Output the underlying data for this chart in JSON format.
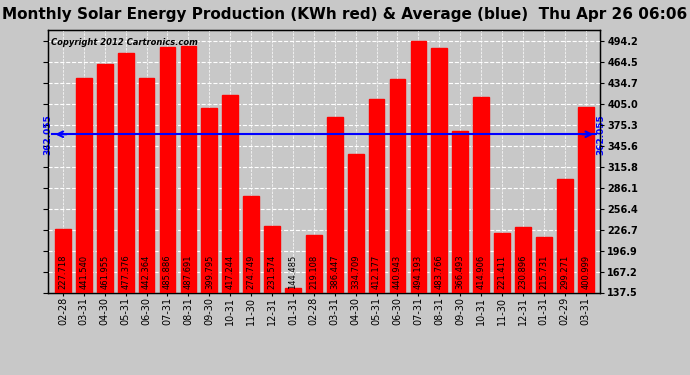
{
  "title": "Monthly Solar Energy Production (KWh red) & Average (blue)  Thu Apr 26 06:06",
  "copyright": "Copyright 2012 Cartronics.com",
  "average": 362.055,
  "average_label": "362.055",
  "categories": [
    "02-28",
    "03-31",
    "04-30",
    "05-31",
    "06-30",
    "07-31",
    "08-31",
    "09-30",
    "10-31",
    "11-30",
    "12-31",
    "01-31",
    "02-28",
    "03-31",
    "04-30",
    "05-31",
    "06-30",
    "07-31",
    "08-31",
    "09-30",
    "10-31",
    "11-30",
    "12-31",
    "01-31",
    "02-29",
    "03-31"
  ],
  "values": [
    227.718,
    441.54,
    461.955,
    477.376,
    442.364,
    485.886,
    487.691,
    399.795,
    417.244,
    274.749,
    231.574,
    144.485,
    219.108,
    386.447,
    334.709,
    412.177,
    440.943,
    494.193,
    483.766,
    366.493,
    414.906,
    221.411,
    230.896,
    215.731,
    299.271,
    400.999
  ],
  "bar_color": "#ff0000",
  "avg_line_color": "#0000ff",
  "fig_bg_color": "#c8c8c8",
  "plot_bg_color": "#c8c8c8",
  "title_bg_color": "#ffffff",
  "ytick_vals": [
    137.5,
    167.2,
    196.9,
    226.7,
    256.4,
    286.1,
    315.8,
    345.6,
    375.3,
    405.0,
    434.7,
    464.5,
    494.2
  ],
  "ylim_low": 137.5,
  "ylim_high": 510.0,
  "grid_color": "#ffffff",
  "title_fontsize": 11,
  "tick_fontsize": 7,
  "bar_label_fontsize": 6,
  "copyright_fontsize": 6
}
